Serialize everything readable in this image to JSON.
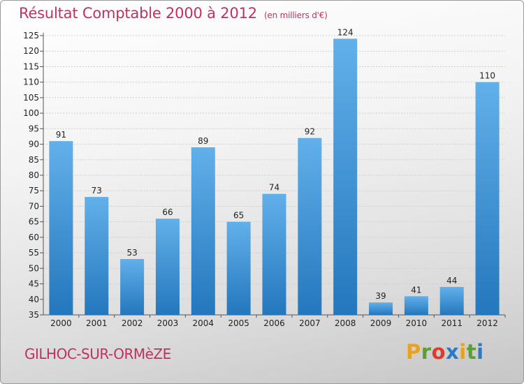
{
  "header": {
    "title": "Résultat Comptable 2000 à 2012",
    "subtitle": "(en milliers d'€)"
  },
  "footer": {
    "commune": "GILHOC-SUR-ORMèZE",
    "logo": {
      "letters": [
        "P",
        "r",
        "o",
        "x",
        "i",
        "t",
        "i"
      ],
      "colors": [
        "#e8a21c",
        "#5aa02c",
        "#e23a2a",
        "#2c7ac4",
        "#e8a21c",
        "#5aa02c",
        "#2c7ac4"
      ]
    }
  },
  "colors": {
    "bar_top": "#62b0ea",
    "bar_bottom": "#2477bd",
    "text": "#222222",
    "accent": "#c0325e"
  },
  "chart_data": {
    "type": "bar",
    "categories": [
      "2000",
      "2001",
      "2002",
      "2003",
      "2004",
      "2005",
      "2006",
      "2007",
      "2008",
      "2009",
      "2010",
      "2011",
      "2012"
    ],
    "values": [
      91,
      73,
      53,
      66,
      89,
      65,
      74,
      92,
      124,
      39,
      41,
      44,
      110
    ],
    "title": "Résultat Comptable 2000 à 2012",
    "xlabel": "",
    "ylabel": "",
    "ylim": [
      35,
      125
    ],
    "yticks": [
      35,
      40,
      45,
      50,
      55,
      60,
      65,
      70,
      75,
      80,
      85,
      90,
      95,
      100,
      105,
      110,
      115,
      120,
      125
    ],
    "grid": true,
    "legend": "none"
  }
}
